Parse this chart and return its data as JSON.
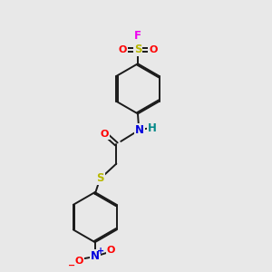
{
  "bg_color": "#e8e8e8",
  "bond_color": "#1a1a1a",
  "atom_colors": {
    "F": "#ee00ee",
    "S": "#b8b800",
    "O": "#ff0000",
    "N_amide": "#0000dd",
    "H": "#008888",
    "N_nitro": "#0000dd",
    "O_minus": "#ff0000",
    "O_plus": "#ff0000"
  },
  "figsize": [
    3.0,
    3.0
  ],
  "dpi": 100
}
